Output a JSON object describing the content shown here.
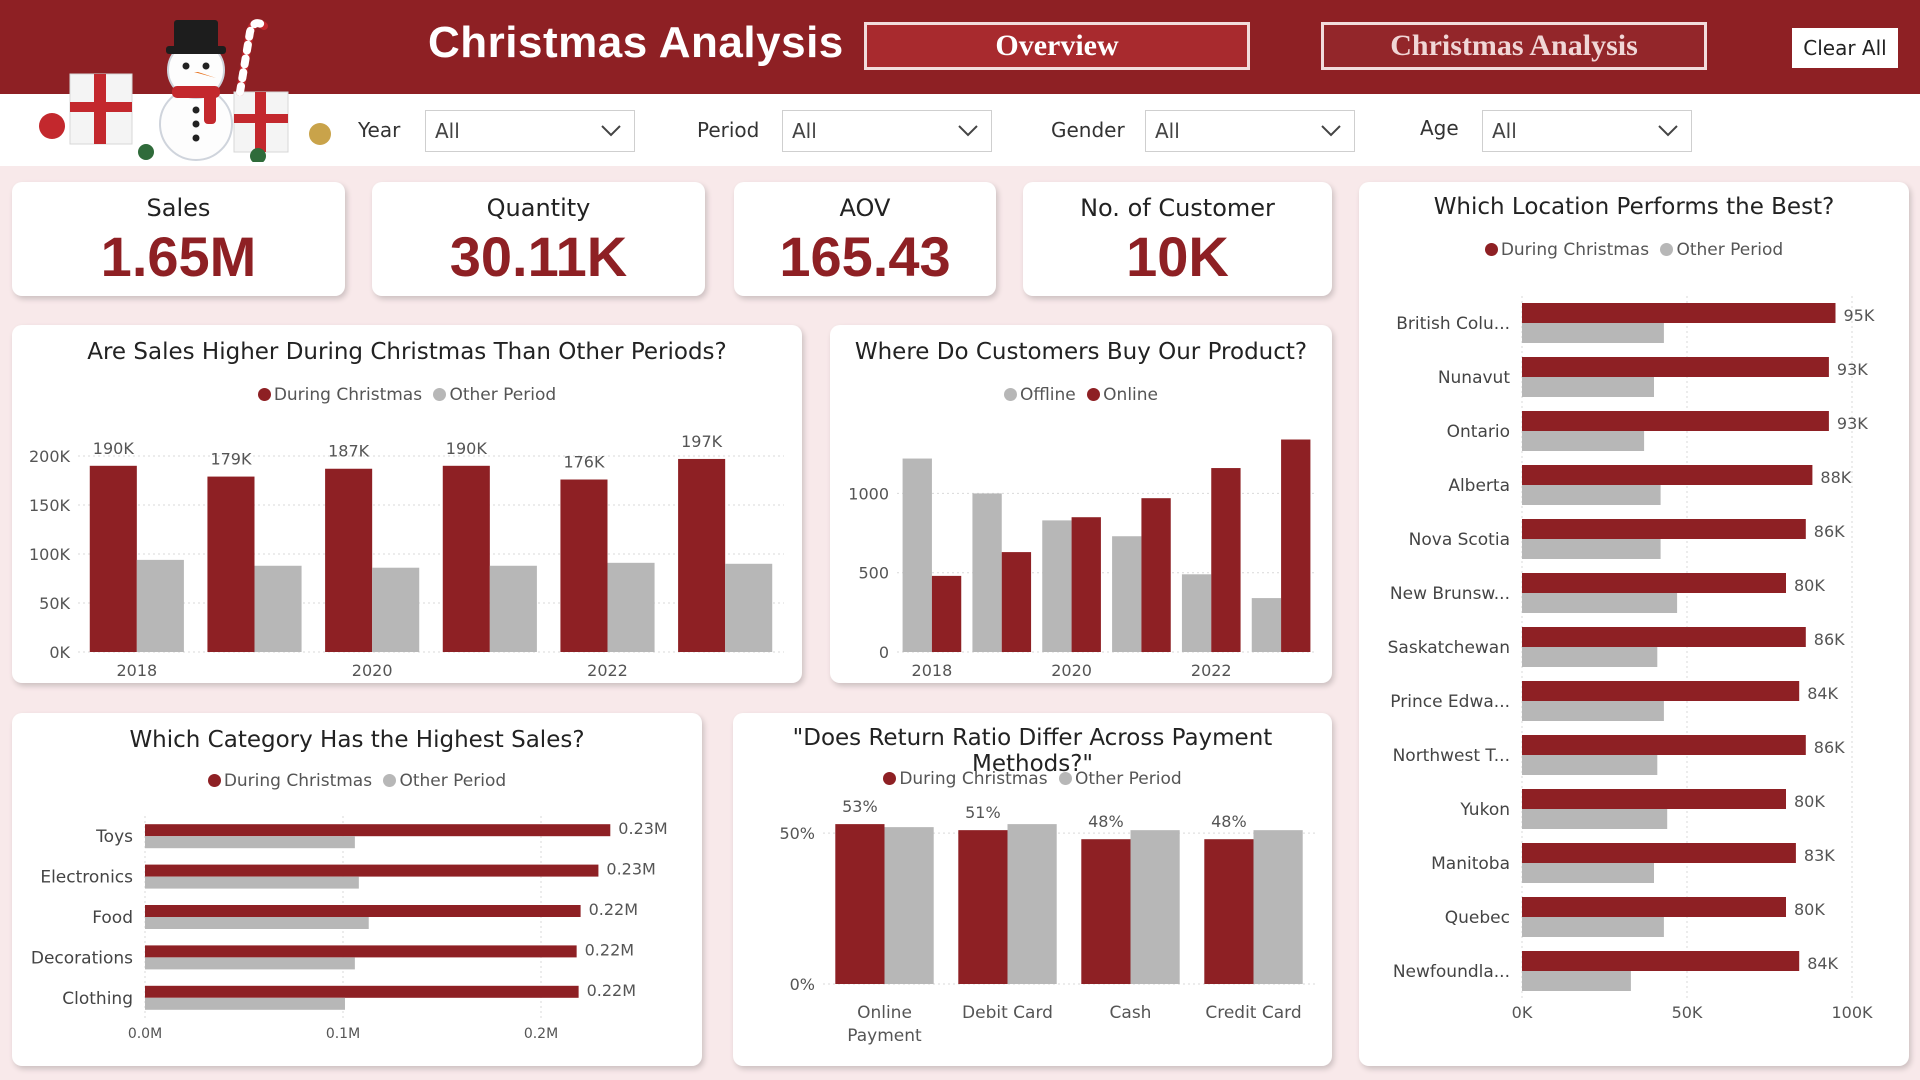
{
  "colors": {
    "header": "#8e2024",
    "christmas": "#8e2024",
    "other": "#b7b7b7",
    "online": "#8e2024",
    "offline": "#b7b7b7"
  },
  "header": {
    "logo_icon": "snowman-gifts-icon",
    "title": "Christmas  Analysis",
    "nav": [
      {
        "label": "Overview",
        "active": true
      },
      {
        "label": "Christmas Analysis",
        "active": false
      }
    ],
    "clear_label": "Clear All"
  },
  "filters": [
    {
      "label": "Year",
      "value": "All"
    },
    {
      "label": "Period",
      "value": "All"
    },
    {
      "label": "Gender",
      "value": "All"
    },
    {
      "label": "Age",
      "value": "All"
    }
  ],
  "kpis": [
    {
      "label": "Sales",
      "value": "1.65M"
    },
    {
      "label": "Quantity",
      "value": "30.11K"
    },
    {
      "label": "AOV",
      "value": "165.43"
    },
    {
      "label": "No. of Customer",
      "value": "10K"
    }
  ],
  "chart_data": [
    {
      "id": "sales_by_year",
      "type": "bar",
      "title": "Are Sales Higher During Christmas Than Other Periods?",
      "legend": [
        "During Christmas",
        "Other Period"
      ],
      "x": [
        2018,
        2019,
        2020,
        2021,
        2022,
        2023
      ],
      "x_tick_labels": [
        "2018",
        "",
        "2020",
        "",
        "2022",
        ""
      ],
      "series": [
        {
          "name": "During Christmas",
          "values": [
            190000,
            179000,
            187000,
            190000,
            176000,
            197000
          ],
          "labels": [
            "190K",
            "179K",
            "187K",
            "190K",
            "176K",
            "197K"
          ]
        },
        {
          "name": "Other Period",
          "values": [
            94000,
            88000,
            86000,
            88000,
            91000,
            90000
          ]
        }
      ],
      "y_ticks": [
        "0K",
        "50K",
        "100K",
        "150K",
        "200K"
      ],
      "ylim": [
        0,
        200000
      ],
      "grid": true
    },
    {
      "id": "channel_by_year",
      "type": "bar",
      "title": "Where Do Customers Buy Our Product?",
      "legend": [
        "Offline",
        "Online"
      ],
      "x": [
        2018,
        2019,
        2020,
        2021,
        2022,
        2023
      ],
      "x_tick_labels": [
        "2018",
        "",
        "2020",
        "",
        "2022",
        ""
      ],
      "series": [
        {
          "name": "Offline",
          "values": [
            1220,
            1000,
            830,
            730,
            490,
            340
          ]
        },
        {
          "name": "Online",
          "values": [
            480,
            630,
            850,
            970,
            1160,
            1340
          ]
        }
      ],
      "y_ticks": [
        "0",
        "500",
        "1000"
      ],
      "ylim": [
        0,
        1400
      ],
      "grid": true
    },
    {
      "id": "category_sales",
      "type": "bar",
      "orientation": "horizontal",
      "title": "Which Category Has the Highest Sales?",
      "legend": [
        "During Christmas",
        "Other Period"
      ],
      "categories": [
        "Toys",
        "Electronics",
        "Food",
        "Decorations",
        "Clothing"
      ],
      "series": [
        {
          "name": "During Christmas",
          "values": [
            0.235,
            0.229,
            0.22,
            0.218,
            0.219
          ],
          "labels": [
            "0.23M",
            "0.23M",
            "0.22M",
            "0.22M",
            "0.22M"
          ]
        },
        {
          "name": "Other Period",
          "values": [
            0.106,
            0.108,
            0.113,
            0.106,
            0.101
          ]
        }
      ],
      "x_ticks": [
        "0.0M",
        "0.1M",
        "0.2M"
      ],
      "xlim": [
        0,
        0.25
      ],
      "grid": true
    },
    {
      "id": "return_ratio",
      "type": "bar",
      "title": "\"Does Return Ratio Differ Across Payment Methods?\"",
      "legend": [
        "During Christmas",
        "Other Period"
      ],
      "categories": [
        "Online Payment",
        "Debit Card",
        "Cash",
        "Credit Card"
      ],
      "category_lines": [
        [
          "Online",
          "Payment"
        ],
        [
          "Debit Card"
        ],
        [
          "Cash"
        ],
        [
          "Credit Card"
        ]
      ],
      "series": [
        {
          "name": "During Christmas",
          "values": [
            53,
            51,
            48,
            48
          ],
          "labels": [
            "53%",
            "51%",
            "48%",
            "48%"
          ]
        },
        {
          "name": "Other Period",
          "values": [
            52,
            53,
            51,
            51
          ]
        }
      ],
      "y_ticks": [
        "0%",
        "50%"
      ],
      "ylim": [
        0,
        60
      ],
      "grid": true
    },
    {
      "id": "location_sales",
      "type": "bar",
      "orientation": "horizontal",
      "title": "Which Location Performs the Best?",
      "legend": [
        "During Christmas",
        "Other Period"
      ],
      "categories": [
        "British Colu...",
        "Nunavut",
        "Ontario",
        "Alberta",
        "Nova Scotia",
        "New Brunsw...",
        "Saskatchewan",
        "Prince Edwa...",
        "Northwest T...",
        "Yukon",
        "Manitoba",
        "Quebec",
        "Newfoundla..."
      ],
      "series": [
        {
          "name": "During Christmas",
          "values": [
            95000,
            93000,
            93000,
            88000,
            86000,
            80000,
            86000,
            84000,
            86000,
            80000,
            83000,
            80000,
            84000
          ],
          "labels": [
            "95K",
            "93K",
            "93K",
            "88K",
            "86K",
            "80K",
            "86K",
            "84K",
            "86K",
            "80K",
            "83K",
            "80K",
            "84K"
          ]
        },
        {
          "name": "Other Period",
          "values": [
            43000,
            40000,
            37000,
            42000,
            42000,
            47000,
            41000,
            43000,
            41000,
            44000,
            40000,
            43000,
            33000
          ]
        }
      ],
      "x_ticks": [
        "0K",
        "50K",
        "100K"
      ],
      "xlim": [
        0,
        100000
      ],
      "grid": true
    }
  ]
}
